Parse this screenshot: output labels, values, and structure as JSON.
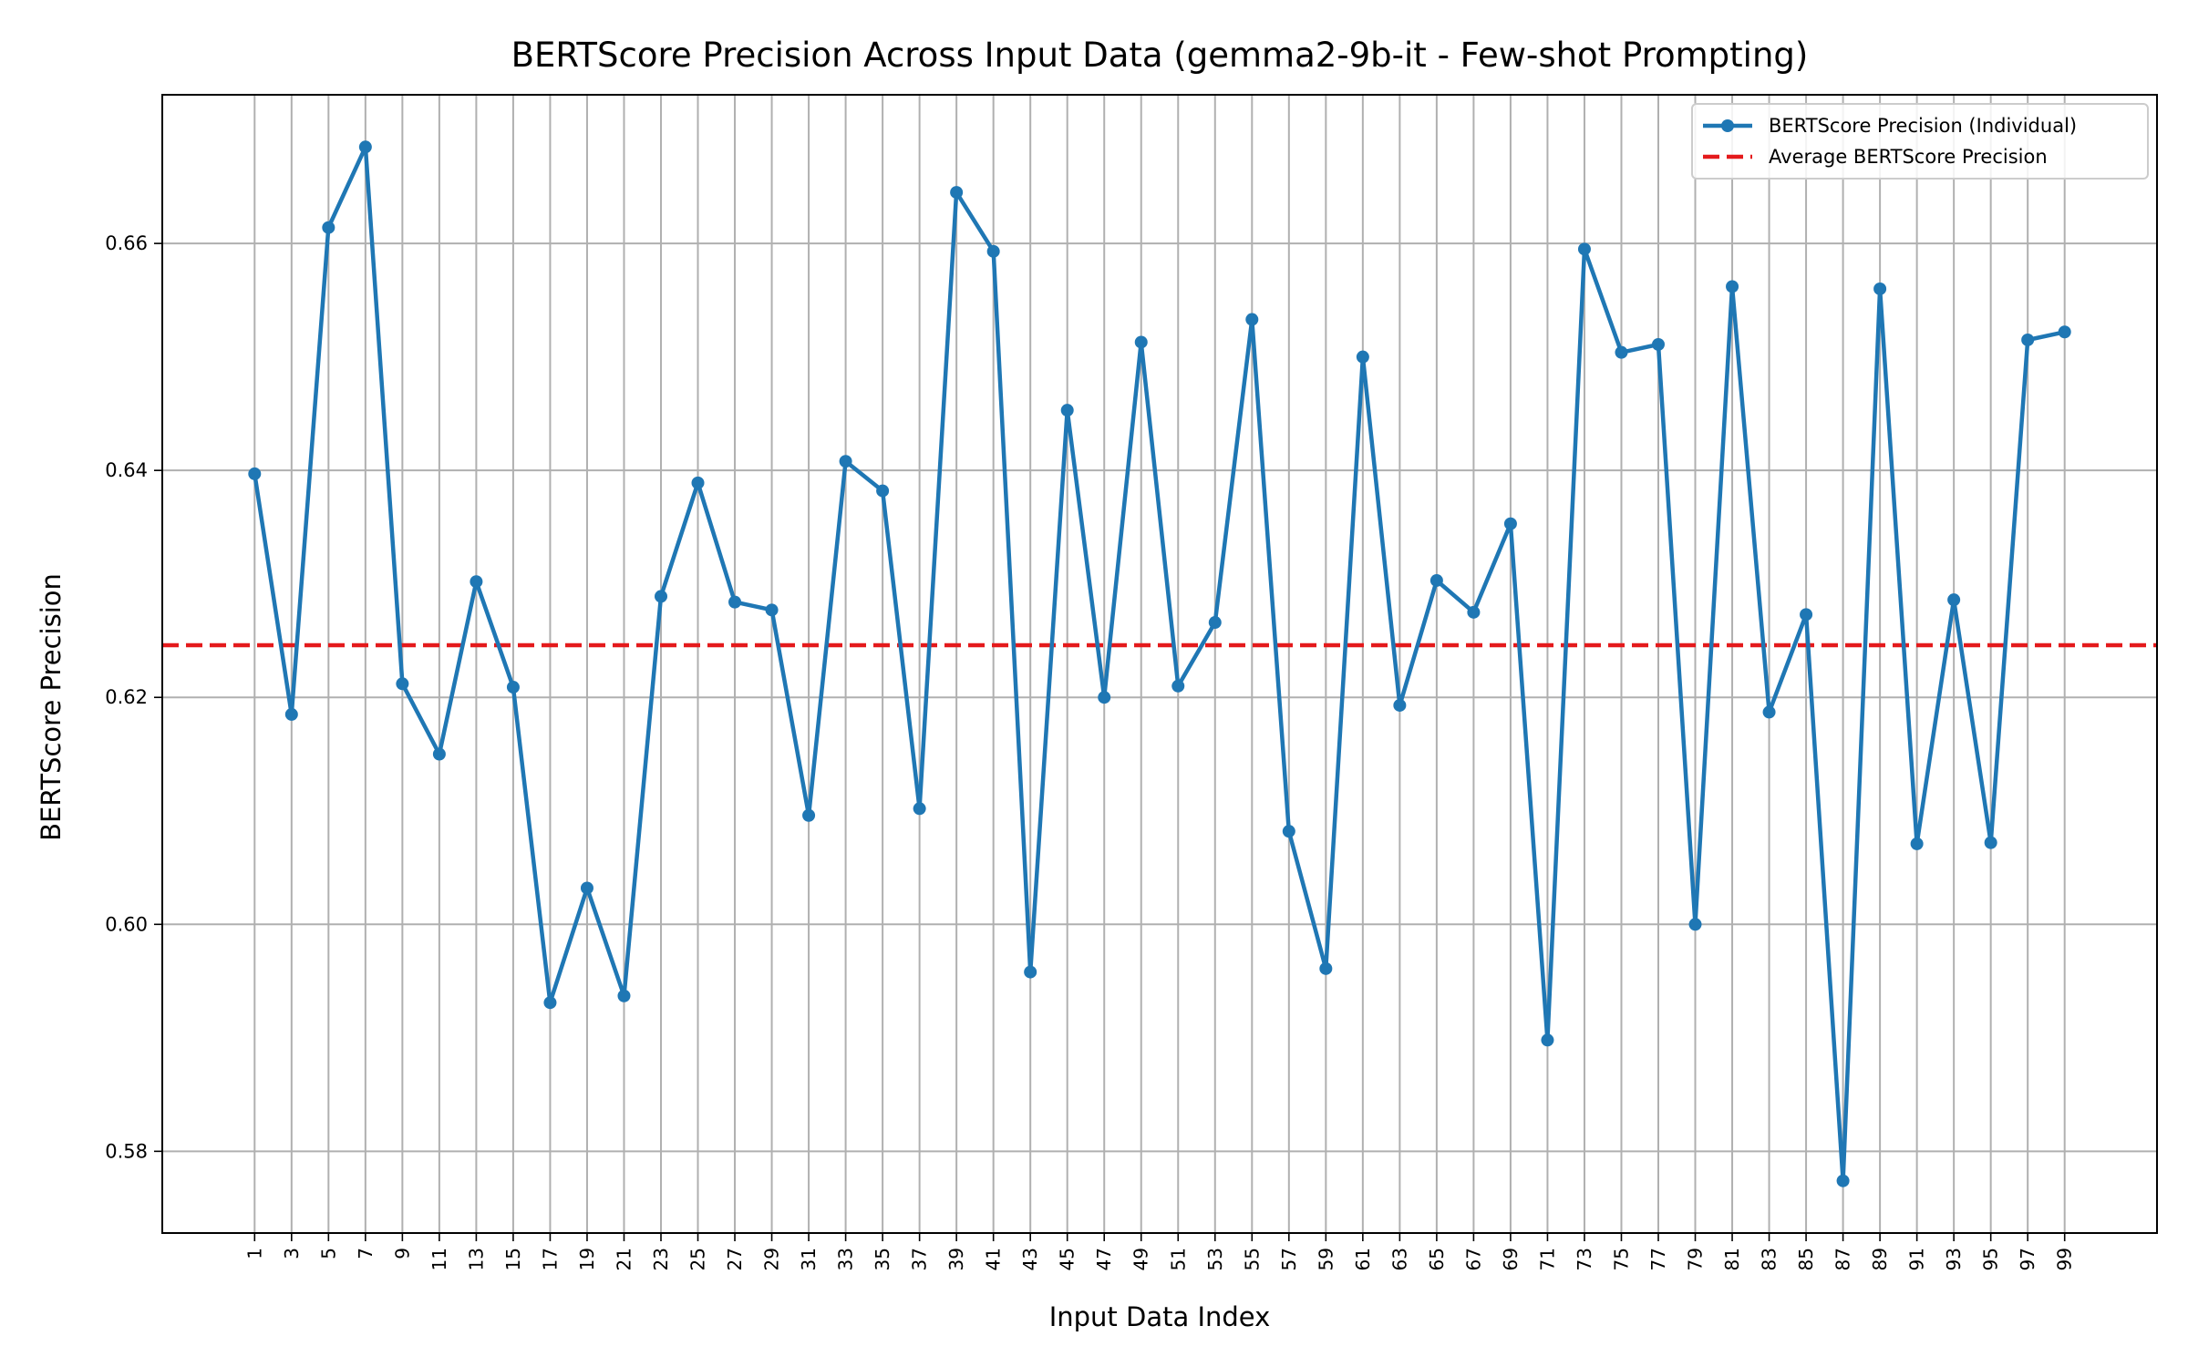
{
  "chart_data": {
    "type": "line",
    "title": "BERTScore Precision Across Input Data (gemma2-9b-it - Few-shot Prompting)",
    "xlabel": "Input Data Index",
    "ylabel": "BERTScore Precision",
    "x": [
      1,
      3,
      5,
      7,
      9,
      11,
      13,
      15,
      17,
      19,
      21,
      23,
      25,
      27,
      29,
      31,
      33,
      35,
      37,
      39,
      41,
      43,
      45,
      47,
      49,
      51,
      53,
      55,
      57,
      59,
      61,
      63,
      65,
      67,
      69,
      71,
      73,
      75,
      77,
      79,
      81,
      83,
      85,
      87,
      89,
      91,
      93,
      95,
      97,
      99
    ],
    "x_ticks": [
      "1",
      "3",
      "5",
      "7",
      "9",
      "11",
      "13",
      "15",
      "17",
      "19",
      "21",
      "23",
      "25",
      "27",
      "29",
      "31",
      "33",
      "35",
      "37",
      "39",
      "41",
      "43",
      "45",
      "47",
      "49",
      "51",
      "53",
      "55",
      "57",
      "59",
      "61",
      "63",
      "65",
      "67",
      "69",
      "71",
      "73",
      "75",
      "77",
      "79",
      "81",
      "83",
      "85",
      "87",
      "89",
      "91",
      "93",
      "95",
      "97",
      "99"
    ],
    "xlim": [
      -4,
      104
    ],
    "ylim": [
      0.5728,
      0.6731
    ],
    "y_ticks": [
      0.58,
      0.6,
      0.62,
      0.64,
      0.66
    ],
    "y_tick_labels": [
      "0.58",
      "0.60",
      "0.62",
      "0.64",
      "0.66"
    ],
    "grid": true,
    "legend_position": "top-right",
    "series": [
      {
        "name": "BERTScore Precision (Individual)",
        "color": "#1f77b4",
        "style": "solid-with-markers",
        "values": [
          0.6397,
          0.6185,
          0.6614,
          0.6685,
          0.6212,
          0.615,
          0.6302,
          0.6209,
          0.5931,
          0.6032,
          0.5937,
          0.6289,
          0.6389,
          0.6284,
          0.6277,
          0.6096,
          0.6408,
          0.6382,
          0.6102,
          0.6645,
          0.6593,
          0.5958,
          0.6453,
          0.62,
          0.6513,
          0.621,
          0.6266,
          0.6533,
          0.6082,
          0.5961,
          0.65,
          0.6193,
          0.6303,
          0.6275,
          0.6353,
          0.5898,
          0.6595,
          0.6504,
          0.6511,
          0.6,
          0.6562,
          0.6187,
          0.6273,
          0.5774,
          0.656,
          0.6071,
          0.6286,
          0.6072,
          0.6515,
          0.6522
        ]
      },
      {
        "name": "Average BERTScore Precision",
        "color": "#e41a1c",
        "style": "dashed",
        "value": 0.6246
      }
    ]
  }
}
